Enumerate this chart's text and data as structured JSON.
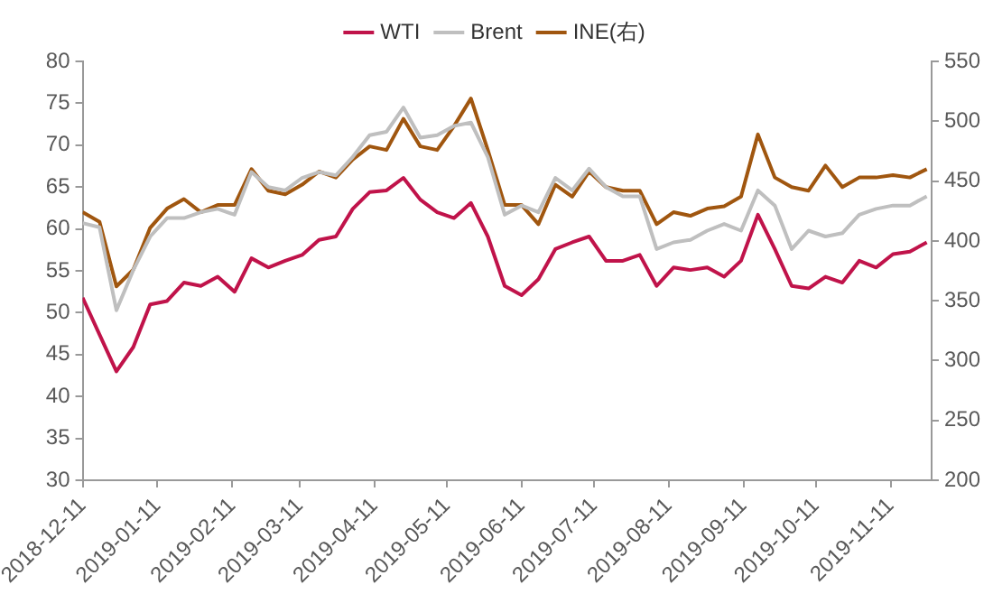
{
  "chart_data": {
    "type": "line",
    "x": [
      "2018-12-11",
      "2018-12-18",
      "2018-12-25",
      "2019-01-01",
      "2019-01-08",
      "2019-01-15",
      "2019-01-22",
      "2019-01-29",
      "2019-02-05",
      "2019-02-12",
      "2019-02-19",
      "2019-02-26",
      "2019-03-05",
      "2019-03-12",
      "2019-03-19",
      "2019-03-26",
      "2019-04-02",
      "2019-04-09",
      "2019-04-16",
      "2019-04-23",
      "2019-04-30",
      "2019-05-07",
      "2019-05-14",
      "2019-05-21",
      "2019-05-28",
      "2019-06-04",
      "2019-06-11",
      "2019-06-18",
      "2019-06-25",
      "2019-07-02",
      "2019-07-09",
      "2019-07-16",
      "2019-07-23",
      "2019-07-30",
      "2019-08-06",
      "2019-08-13",
      "2019-08-20",
      "2019-08-27",
      "2019-09-03",
      "2019-09-10",
      "2019-09-17",
      "2019-09-24",
      "2019-10-01",
      "2019-10-08",
      "2019-10-15",
      "2019-10-22",
      "2019-10-29",
      "2019-11-05",
      "2019-11-12",
      "2019-11-19",
      "2019-11-26"
    ],
    "series": [
      {
        "name": "WTI",
        "color": "#c0134a",
        "values": [
          51.8,
          47.4,
          43.0,
          45.9,
          51.0,
          51.4,
          53.6,
          53.2,
          54.3,
          52.5,
          56.5,
          55.4,
          56.2,
          56.9,
          58.7,
          59.1,
          62.4,
          64.4,
          64.6,
          66.1,
          63.5,
          62.0,
          61.3,
          63.1,
          59.1,
          53.2,
          52.1,
          54.0,
          57.6,
          58.4,
          59.1,
          56.2,
          56.2,
          56.9,
          53.2,
          55.4,
          55.1,
          55.4,
          54.3,
          56.2,
          61.7,
          57.6,
          53.2,
          52.9,
          54.3,
          53.6,
          56.2,
          55.4,
          57.0,
          57.3,
          58.4
        ]
      },
      {
        "name": "Brent",
        "color": "#bfbfbf",
        "values": [
          60.7,
          60.2,
          50.3,
          55.1,
          59.1,
          61.3,
          61.3,
          62.0,
          62.4,
          61.7,
          66.8,
          65.0,
          64.6,
          66.1,
          66.8,
          66.4,
          68.6,
          71.2,
          71.6,
          74.5,
          70.9,
          71.2,
          72.3,
          72.7,
          68.6,
          61.7,
          62.8,
          62.0,
          66.1,
          64.6,
          67.2,
          65.0,
          63.9,
          63.9,
          57.6,
          58.4,
          58.7,
          59.8,
          60.6,
          59.8,
          64.6,
          62.8,
          57.6,
          59.8,
          59.1,
          59.5,
          61.7,
          62.4,
          62.8,
          62.8,
          63.9
        ]
      },
      {
        "name": "INE(右)",
        "color": "#a0560f",
        "axis": "y2",
        "values": [
          424,
          416,
          362,
          376,
          411,
          427,
          435,
          424,
          430,
          430,
          460,
          442,
          439,
          447,
          458,
          453,
          468,
          479,
          476,
          502,
          479,
          476,
          496,
          519,
          476,
          430,
          430,
          414,
          447,
          437,
          458,
          445,
          442,
          442,
          414,
          424,
          421,
          427,
          429,
          437,
          489,
          453,
          445,
          442,
          463,
          445,
          453,
          453,
          455,
          453,
          460
        ]
      }
    ],
    "xlim": [
      "2018-12-11",
      "2019-11-28"
    ],
    "xticks": [
      "2018-12-11",
      "2019-01-11",
      "2019-02-11",
      "2019-03-11",
      "2019-04-11",
      "2019-05-11",
      "2019-06-11",
      "2019-07-11",
      "2019-08-11",
      "2019-09-11",
      "2019-10-11",
      "2019-11-11"
    ],
    "ylim": [
      30,
      80
    ],
    "yticks": [
      30,
      35,
      40,
      45,
      50,
      55,
      60,
      65,
      70,
      75,
      80
    ],
    "y2lim": [
      200,
      550
    ],
    "y2ticks": [
      200,
      250,
      300,
      350,
      400,
      450,
      500,
      550
    ],
    "legend": "top",
    "grid": false,
    "marker": "none",
    "line_style": "solid"
  }
}
